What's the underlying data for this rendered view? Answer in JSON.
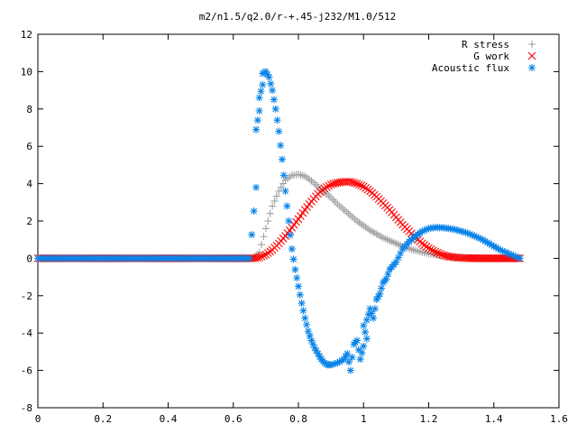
{
  "chart_data": {
    "type": "scatter",
    "title": "m2/n1.5/q2.0/r-+.45-j232/M1.0/512",
    "xlim": [
      0,
      1.6
    ],
    "ylim": [
      -8,
      12
    ],
    "xticks": [
      "0",
      "0.2",
      "0.4",
      "0.6",
      "0.8",
      "1",
      "1.2",
      "1.4",
      "1.6"
    ],
    "yticks": [
      "12",
      "10",
      "8",
      "6",
      "4",
      "2",
      "0",
      "-2",
      "-4",
      "-6",
      "-8"
    ],
    "xtick_values": [
      0,
      0.2,
      0.4,
      0.6,
      0.8,
      1.0,
      1.2,
      1.4,
      1.6
    ],
    "ytick_values": [
      12,
      10,
      8,
      6,
      4,
      2,
      0,
      -2,
      -4,
      -6,
      -8
    ],
    "grid": false,
    "legend_position": "top-right",
    "series": [
      {
        "name": "R stress",
        "marker": "plus",
        "color": "#a0a0a0",
        "x": [
          0.0,
          0.2,
          0.4,
          0.6,
          0.66,
          0.68,
          0.7,
          0.72,
          0.74,
          0.76,
          0.78,
          0.8,
          0.82,
          0.84,
          0.86,
          0.88,
          0.9,
          0.92,
          0.94,
          0.96,
          0.98,
          1.0,
          1.02,
          1.04,
          1.06,
          1.08,
          1.1,
          1.12,
          1.14,
          1.16,
          1.18,
          1.2,
          1.22,
          1.24,
          1.26,
          1.28,
          1.3,
          1.32,
          1.36,
          1.4,
          1.44,
          1.48
        ],
        "y": [
          0,
          0,
          0,
          0,
          0,
          0.3,
          1.6,
          2.8,
          3.6,
          4.2,
          4.45,
          4.5,
          4.4,
          4.15,
          3.85,
          3.55,
          3.25,
          2.9,
          2.6,
          2.3,
          2.0,
          1.75,
          1.5,
          1.3,
          1.1,
          0.95,
          0.8,
          0.65,
          0.52,
          0.42,
          0.33,
          0.25,
          0.19,
          0.14,
          0.1,
          0.07,
          0.05,
          0.03,
          0.02,
          0.01,
          0.005,
          0
        ]
      },
      {
        "name": "G work",
        "marker": "cross",
        "color": "#ff0000",
        "x": [
          0.0,
          0.2,
          0.4,
          0.6,
          0.66,
          0.68,
          0.7,
          0.72,
          0.74,
          0.76,
          0.78,
          0.8,
          0.82,
          0.84,
          0.86,
          0.88,
          0.9,
          0.92,
          0.94,
          0.96,
          0.98,
          1.0,
          1.02,
          1.04,
          1.06,
          1.08,
          1.1,
          1.12,
          1.14,
          1.16,
          1.18,
          1.2,
          1.22,
          1.24,
          1.26,
          1.28,
          1.3,
          1.32,
          1.36,
          1.4,
          1.44,
          1.48
        ],
        "y": [
          0,
          0,
          0,
          0,
          0,
          0.05,
          0.2,
          0.45,
          0.8,
          1.2,
          1.65,
          2.1,
          2.6,
          3.05,
          3.45,
          3.75,
          3.95,
          4.05,
          4.1,
          4.1,
          4.0,
          3.85,
          3.6,
          3.3,
          2.95,
          2.6,
          2.2,
          1.8,
          1.45,
          1.1,
          0.8,
          0.55,
          0.35,
          0.2,
          0.1,
          0.05,
          0.02,
          0.01,
          0,
          0,
          0,
          0
        ]
      },
      {
        "name": "Acoustic flux",
        "marker": "star",
        "color": "#0a84e8",
        "x": [
          0.0,
          0.1,
          0.2,
          0.3,
          0.4,
          0.5,
          0.6,
          0.65,
          0.67,
          0.67,
          0.68,
          0.68,
          0.69,
          0.69,
          0.7,
          0.71,
          0.72,
          0.73,
          0.74,
          0.75,
          0.76,
          0.77,
          0.78,
          0.79,
          0.8,
          0.81,
          0.82,
          0.83,
          0.84,
          0.85,
          0.86,
          0.87,
          0.88,
          0.89,
          0.9,
          0.92,
          0.94,
          0.95,
          0.96,
          0.97,
          0.98,
          0.99,
          1.0,
          1.0,
          1.01,
          1.01,
          1.02,
          1.03,
          1.04,
          1.05,
          1.06,
          1.07,
          1.08,
          1.1,
          1.12,
          1.14,
          1.16,
          1.18,
          1.2,
          1.22,
          1.24,
          1.26,
          1.28,
          1.3,
          1.32,
          1.34,
          1.36,
          1.38,
          1.4,
          1.42,
          1.44,
          1.46,
          1.48
        ],
        "y": [
          0,
          0,
          0,
          0,
          0,
          0,
          0,
          0,
          3.8,
          6.9,
          7.9,
          8.6,
          9.3,
          9.9,
          10.0,
          9.7,
          9.0,
          8.0,
          6.8,
          5.3,
          3.6,
          2.0,
          0.5,
          -0.6,
          -1.5,
          -2.4,
          -3.2,
          -3.9,
          -4.4,
          -4.8,
          -5.1,
          -5.4,
          -5.6,
          -5.7,
          -5.7,
          -5.6,
          -5.4,
          -5.1,
          -6.0,
          -4.6,
          -4.4,
          -5.4,
          -4.7,
          -3.6,
          -4.3,
          -3.3,
          -2.7,
          -3.2,
          -2.2,
          -1.9,
          -1.3,
          -1.1,
          -0.6,
          -0.2,
          0.5,
          0.9,
          1.2,
          1.45,
          1.6,
          1.65,
          1.65,
          1.6,
          1.55,
          1.45,
          1.35,
          1.2,
          1.05,
          0.85,
          0.65,
          0.45,
          0.3,
          0.15,
          0
        ]
      }
    ]
  }
}
